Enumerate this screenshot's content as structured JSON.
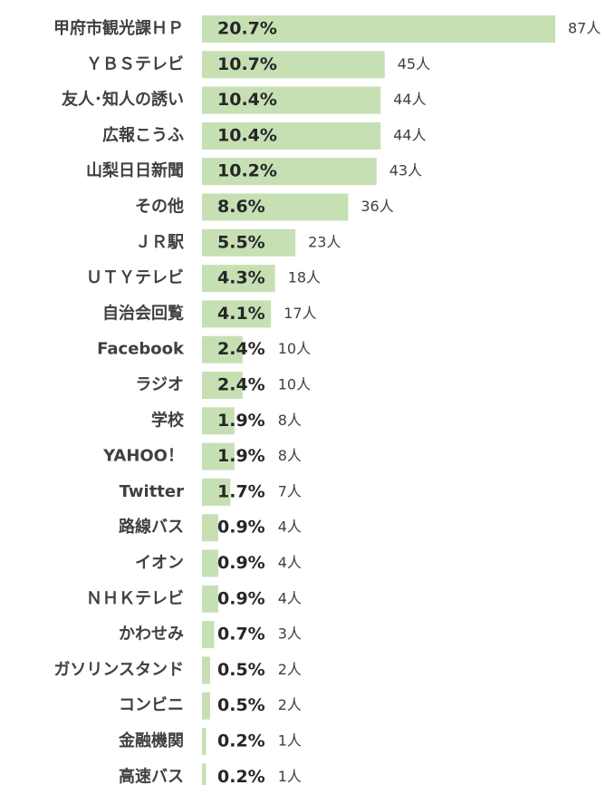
{
  "chart_data": {
    "type": "bar",
    "orientation": "horizontal",
    "color": "#c6e0b4",
    "categories": [
      "甲府市観光課ＨＰ",
      "ＹＢＳテレビ",
      "友人･知人の誘い",
      "広報こうふ",
      "山梨日日新聞",
      "その他",
      "ＪＲ駅",
      "ＵＴＹテレビ",
      "自治会回覧",
      "Facebook",
      "ラジオ",
      "学校",
      "YAHOO！",
      "Twitter",
      "路線バス",
      "イオン",
      "ＮＨＫテレビ",
      "かわせみ",
      "ガソリンスタンド",
      "コンビニ",
      "金融機関",
      "高速バス"
    ],
    "values": [
      87,
      45,
      44,
      44,
      43,
      36,
      23,
      18,
      17,
      10,
      10,
      8,
      8,
      7,
      4,
      4,
      4,
      3,
      2,
      2,
      1,
      1
    ],
    "value_labels": [
      "87人",
      "45人",
      "44人",
      "44人",
      "43人",
      "36人",
      "23人",
      "18人",
      "17人",
      "10人",
      "10人",
      "8人",
      "8人",
      "7人",
      "4人",
      "4人",
      "4人",
      "3人",
      "2人",
      "2人",
      "1人",
      "1人"
    ],
    "percents": [
      20.7,
      10.7,
      10.4,
      10.4,
      10.2,
      8.6,
      5.5,
      4.3,
      4.1,
      2.4,
      2.4,
      1.9,
      1.9,
      1.7,
      0.9,
      0.9,
      0.9,
      0.7,
      0.5,
      0.5,
      0.2,
      0.2
    ],
    "percent_labels": [
      "20.7%",
      "10.7%",
      "10.4%",
      "10.4%",
      "10.2%",
      "8.6%",
      "5.5%",
      "4.3%",
      "4.1%",
      "2.4%",
      "2.4%",
      "1.9%",
      "1.9%",
      "1.7%",
      "0.9%",
      "0.9%",
      "0.9%",
      "0.7%",
      "0.5%",
      "0.5%",
      "0.2%",
      "0.2%"
    ]
  }
}
